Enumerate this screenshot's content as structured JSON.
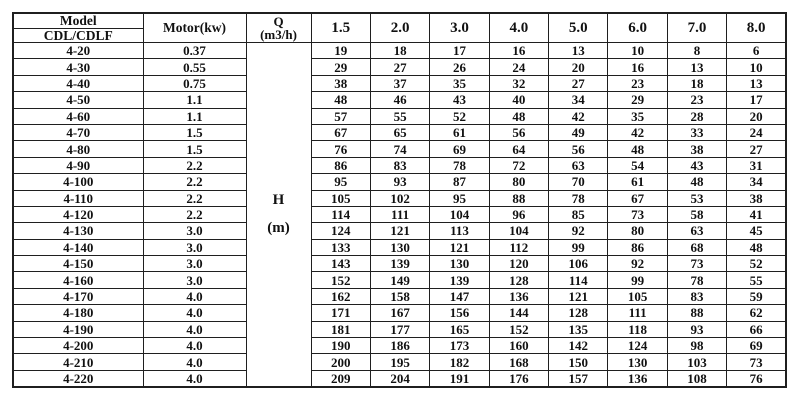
{
  "colors": {
    "background": "#ffffff",
    "border": "#1f1f1f",
    "text": "#111111"
  },
  "table": {
    "header": {
      "model_label": "Model",
      "model_series_label": "CDL/CDLF",
      "motor_label": "Motor(kw)",
      "flow_label_line1": "Q",
      "flow_label_line2": "(m3/h)",
      "flow_columns": [
        "1.5",
        "2.0",
        "3.0",
        "4.0",
        "5.0",
        "6.0",
        "7.0",
        "8.0"
      ]
    },
    "head_unit": {
      "line1": "H",
      "line2": "(m)"
    },
    "rows": [
      {
        "model": "4-20",
        "motor": "0.37",
        "head": [
          19,
          18,
          17,
          16,
          13,
          10,
          8,
          6
        ]
      },
      {
        "model": "4-30",
        "motor": "0.55",
        "head": [
          29,
          27,
          26,
          24,
          20,
          16,
          13,
          10
        ]
      },
      {
        "model": "4-40",
        "motor": "0.75",
        "head": [
          38,
          37,
          35,
          32,
          27,
          23,
          18,
          13
        ]
      },
      {
        "model": "4-50",
        "motor": "1.1",
        "head": [
          48,
          46,
          43,
          40,
          34,
          29,
          23,
          17
        ]
      },
      {
        "model": "4-60",
        "motor": "1.1",
        "head": [
          57,
          55,
          52,
          48,
          42,
          35,
          28,
          20
        ]
      },
      {
        "model": "4-70",
        "motor": "1.5",
        "head": [
          67,
          65,
          61,
          56,
          49,
          42,
          33,
          24
        ]
      },
      {
        "model": "4-80",
        "motor": "1.5",
        "head": [
          76,
          74,
          69,
          64,
          56,
          48,
          38,
          27
        ]
      },
      {
        "model": "4-90",
        "motor": "2.2",
        "head": [
          86,
          83,
          78,
          72,
          63,
          54,
          43,
          31
        ]
      },
      {
        "model": "4-100",
        "motor": "2.2",
        "head": [
          95,
          93,
          87,
          80,
          70,
          61,
          48,
          34
        ]
      },
      {
        "model": "4-110",
        "motor": "2.2",
        "head": [
          105,
          102,
          95,
          88,
          78,
          67,
          53,
          38
        ]
      },
      {
        "model": "4-120",
        "motor": "2.2",
        "head": [
          114,
          111,
          104,
          96,
          85,
          73,
          58,
          41
        ]
      },
      {
        "model": "4-130",
        "motor": "3.0",
        "head": [
          124,
          121,
          113,
          104,
          92,
          80,
          63,
          45
        ]
      },
      {
        "model": "4-140",
        "motor": "3.0",
        "head": [
          133,
          130,
          121,
          112,
          99,
          86,
          68,
          48
        ]
      },
      {
        "model": "4-150",
        "motor": "3.0",
        "head": [
          143,
          139,
          130,
          120,
          106,
          92,
          73,
          52
        ]
      },
      {
        "model": "4-160",
        "motor": "3.0",
        "head": [
          152,
          149,
          139,
          128,
          114,
          99,
          78,
          55
        ]
      },
      {
        "model": "4-170",
        "motor": "4.0",
        "head": [
          162,
          158,
          147,
          136,
          121,
          105,
          83,
          59
        ]
      },
      {
        "model": "4-180",
        "motor": "4.0",
        "head": [
          171,
          167,
          156,
          144,
          128,
          111,
          88,
          62
        ]
      },
      {
        "model": "4-190",
        "motor": "4.0",
        "head": [
          181,
          177,
          165,
          152,
          135,
          118,
          93,
          66
        ]
      },
      {
        "model": "4-200",
        "motor": "4.0",
        "head": [
          190,
          186,
          173,
          160,
          142,
          124,
          98,
          69
        ]
      },
      {
        "model": "4-210",
        "motor": "4.0",
        "head": [
          200,
          195,
          182,
          168,
          150,
          130,
          103,
          73
        ]
      },
      {
        "model": "4-220",
        "motor": "4.0",
        "head": [
          209,
          204,
          191,
          176,
          157,
          136,
          108,
          76
        ]
      }
    ]
  }
}
